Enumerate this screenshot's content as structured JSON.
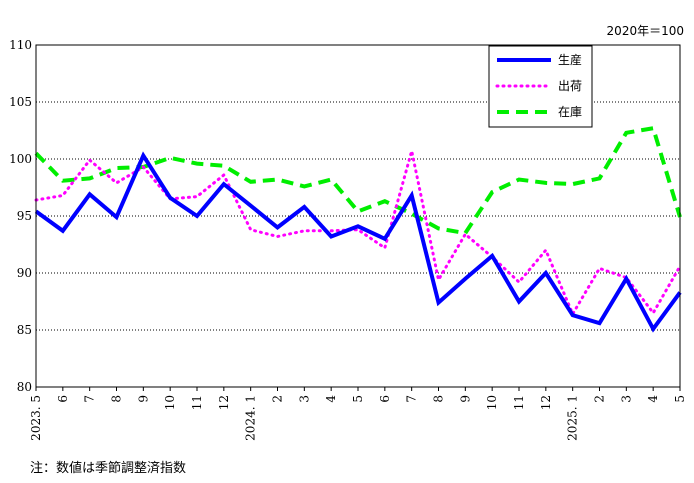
{
  "unit_label": "2020年＝100",
  "note": "注：数値は季節調整済指数",
  "colors": {
    "production": "#0000ff",
    "shipments": "#ff00ff",
    "inventory": "#00ee00"
  },
  "chart_data": {
    "type": "line",
    "categories": [
      "2023. 5",
      "6",
      "7",
      "8",
      "9",
      "10",
      "11",
      "12",
      "2024. 1",
      "2",
      "3",
      "4",
      "5",
      "6",
      "7",
      "8",
      "9",
      "10",
      "11",
      "12",
      "2025. 1",
      "2",
      "3",
      "4",
      "5"
    ],
    "ylim": [
      80,
      110
    ],
    "yticks": [
      80,
      85,
      90,
      95,
      100,
      105,
      110
    ],
    "grid": "horizontal dotted",
    "legend_position": "top-right",
    "series": [
      {
        "name": "生産",
        "key": "production",
        "style": "solid",
        "values": [
          95.4,
          93.7,
          96.9,
          94.9,
          100.3,
          96.6,
          95.0,
          97.8,
          95.9,
          94.0,
          95.8,
          93.2,
          94.1,
          93.0,
          96.8,
          87.4,
          89.5,
          91.5,
          87.5,
          90.0,
          86.3,
          85.6,
          89.5,
          85.1,
          88.3
        ]
      },
      {
        "name": "出荷",
        "key": "shipments",
        "style": "dotted",
        "values": [
          96.4,
          96.8,
          99.9,
          97.9,
          99.3,
          96.5,
          96.7,
          98.6,
          93.8,
          93.2,
          93.7,
          93.7,
          93.8,
          92.2,
          100.7,
          89.4,
          93.4,
          91.4,
          89.2,
          92.0,
          86.4,
          90.4,
          89.6,
          86.5,
          90.6
        ]
      },
      {
        "name": "在庫",
        "key": "inventory",
        "style": "dashed",
        "values": [
          100.5,
          98.1,
          98.3,
          99.2,
          99.3,
          100.1,
          99.6,
          99.4,
          98.0,
          98.2,
          97.6,
          98.2,
          95.4,
          96.3,
          95.2,
          93.9,
          93.5,
          97.1,
          98.2,
          97.9,
          97.8,
          98.3,
          102.3,
          102.7,
          94.9
        ]
      }
    ]
  }
}
